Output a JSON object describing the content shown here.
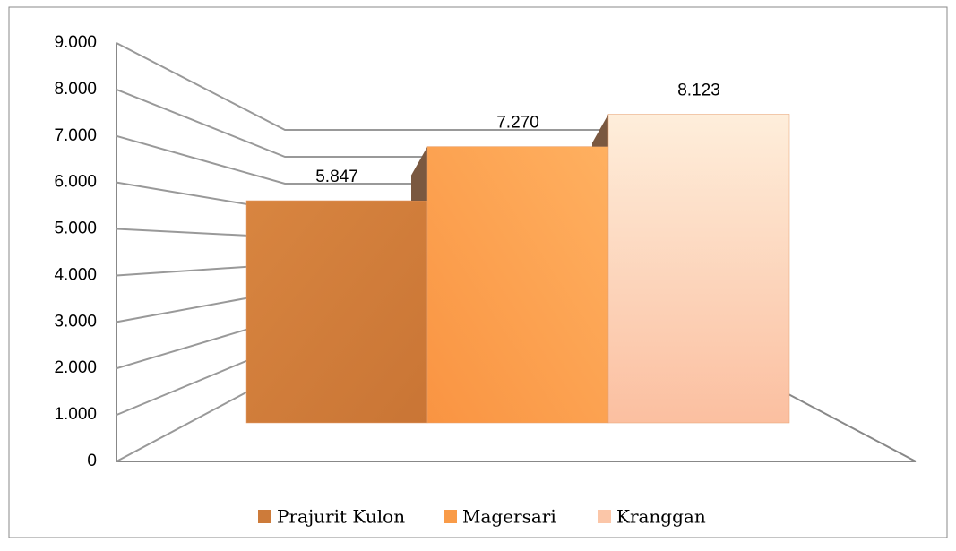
{
  "chart_data": {
    "type": "bar3d",
    "series": [
      {
        "name": "Prajurit Kulon",
        "color": "#cd7b3a",
        "values": [
          5847
        ],
        "value_labels": [
          "5.847"
        ]
      },
      {
        "name": "Magersari",
        "color": "#f99b48",
        "values": [
          7270
        ],
        "value_labels": [
          "7.270"
        ]
      },
      {
        "name": "Kranggan",
        "color": "#fbc6a8",
        "values": [
          8123
        ],
        "value_labels": [
          "8.123"
        ]
      }
    ],
    "ylim": [
      0,
      9000
    ],
    "yticks": [
      0,
      {
        "value": 1000,
        "label": "1.000"
      },
      {
        "value": 2000,
        "label": "2.000"
      },
      {
        "value": 3000,
        "label": "3.000"
      },
      {
        "value": 4000,
        "label": "4.000"
      },
      {
        "value": 5000,
        "label": "5.000"
      },
      {
        "value": 6000,
        "label": "6.000"
      },
      {
        "value": 7000,
        "label": "7.000"
      },
      {
        "value": 8000,
        "label": "8.000"
      },
      {
        "value": 9000,
        "label": "9.000"
      }
    ],
    "grid": true,
    "legend": "bottom"
  }
}
